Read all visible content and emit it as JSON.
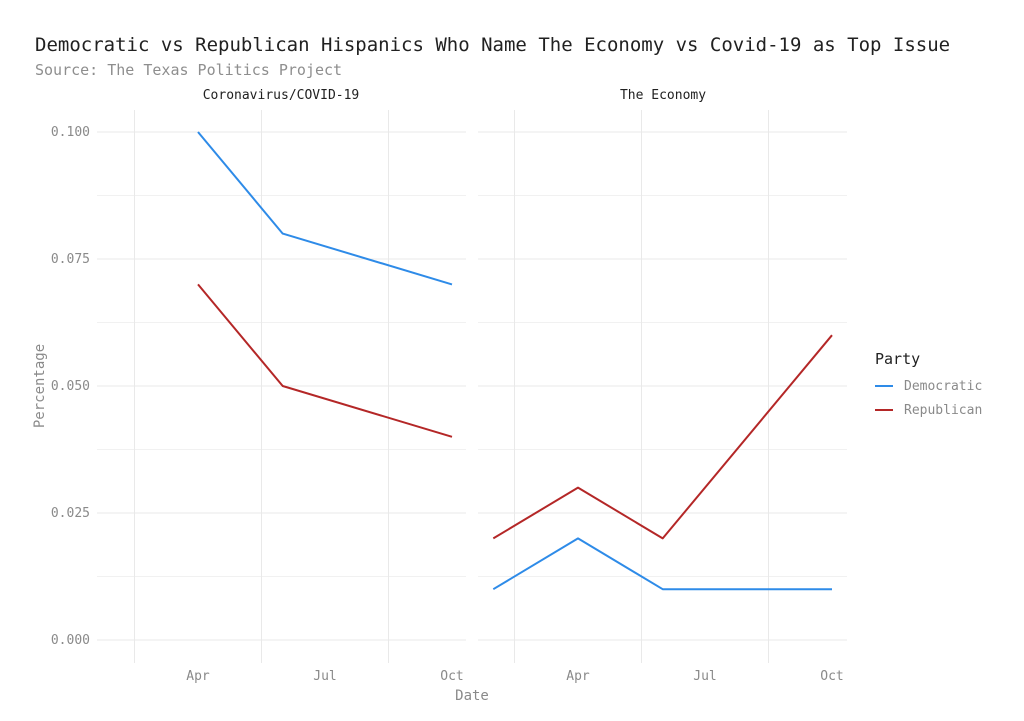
{
  "title": "Democratic vs Republican Hispanics Who Name The Economy vs Covid-19 as Top Issue",
  "subtitle": "Source: The Texas Politics Project",
  "axes": {
    "y_label": "Percentage",
    "x_label": "Date",
    "y_ticks": [
      "0.100",
      "0.075",
      "0.050",
      "0.025",
      "0.000"
    ],
    "x_ticks": [
      "Apr",
      "Jul",
      "Oct"
    ]
  },
  "legend": {
    "title": "Party",
    "items": [
      {
        "label": "Democratic",
        "color": "#2E8BE8"
      },
      {
        "label": "Republican",
        "color": "#B42727"
      }
    ]
  },
  "colors": {
    "democratic_line": "#2E8BE8",
    "republican_line": "#B42727",
    "gridline": "#e9e9e9",
    "tick_text": "#8a8a8a",
    "title_text": "#212121",
    "subtitle_text": "#8e8e8e"
  },
  "chart_data": {
    "type": "line",
    "title": "Democratic vs Republican Hispanics Who Name The Economy vs Covid-19 as Top Issue",
    "subtitle": "Source: The Texas Politics Project",
    "xlabel": "Date",
    "ylabel": "Percentage",
    "ylim": [
      0,
      0.105
    ],
    "y_major_ticks": [
      0,
      0.025,
      0.05,
      0.075,
      0.1
    ],
    "y_minor_gridlines": [
      0.0125,
      0.0375,
      0.0625,
      0.0875
    ],
    "x_tick_labels": [
      "Apr",
      "Jul",
      "Oct"
    ],
    "x_minor_gridline_months": [
      "mid-Feb",
      "mid-May",
      "mid-Aug"
    ],
    "grid": true,
    "legend_position": "right",
    "legend_title": "Party",
    "facets": [
      {
        "label": "Coronavirus/COVID-19",
        "series": [
          {
            "name": "Democratic",
            "color": "#2E8BE8",
            "x": [
              "Apr",
              "Jun",
              "Oct"
            ],
            "values": [
              0.1,
              0.08,
              0.07
            ]
          },
          {
            "name": "Republican",
            "color": "#B42727",
            "x": [
              "Apr",
              "Jun",
              "Oct"
            ],
            "values": [
              0.07,
              0.05,
              0.04
            ]
          }
        ]
      },
      {
        "label": "The Economy",
        "series": [
          {
            "name": "Democratic",
            "color": "#2E8BE8",
            "x": [
              "Feb",
              "Apr",
              "Jun",
              "Oct"
            ],
            "values": [
              0.01,
              0.02,
              0.01,
              0.01
            ]
          },
          {
            "name": "Republican",
            "color": "#B42727",
            "x": [
              "Feb",
              "Apr",
              "Jun",
              "Oct"
            ],
            "values": [
              0.02,
              0.03,
              0.02,
              0.06
            ]
          }
        ]
      }
    ]
  }
}
